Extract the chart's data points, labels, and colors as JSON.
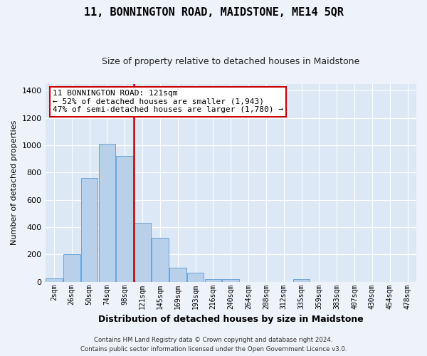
{
  "title": "11, BONNINGTON ROAD, MAIDSTONE, ME14 5QR",
  "subtitle": "Size of property relative to detached houses in Maidstone",
  "xlabel": "Distribution of detached houses by size in Maidstone",
  "ylabel": "Number of detached properties",
  "bar_labels": [
    "2sqm",
    "26sqm",
    "50sqm",
    "74sqm",
    "98sqm",
    "121sqm",
    "145sqm",
    "169sqm",
    "193sqm",
    "216sqm",
    "240sqm",
    "264sqm",
    "288sqm",
    "312sqm",
    "335sqm",
    "359sqm",
    "383sqm",
    "407sqm",
    "430sqm",
    "454sqm",
    "478sqm"
  ],
  "bar_values": [
    25,
    200,
    760,
    1010,
    920,
    430,
    320,
    105,
    65,
    20,
    20,
    0,
    0,
    0,
    20,
    0,
    0,
    0,
    0,
    0,
    0
  ],
  "bar_color": "#b8d0ea",
  "bar_edge_color": "#5b9bd5",
  "red_line_x": 4.5,
  "highlight_color": "#cc0000",
  "ylim": [
    0,
    1450
  ],
  "yticks": [
    0,
    200,
    400,
    600,
    800,
    1000,
    1200,
    1400
  ],
  "annotation_title": "11 BONNINGTON ROAD: 121sqm",
  "annotation_line1": "← 52% of detached houses are smaller (1,943)",
  "annotation_line2": "47% of semi-detached houses are larger (1,780) →",
  "annotation_box_color": "#cc0000",
  "footer_line1": "Contains HM Land Registry data © Crown copyright and database right 2024.",
  "footer_line2": "Contains public sector information licensed under the Open Government Licence v3.0.",
  "background_color": "#eef2fa",
  "plot_bg_color": "#dce8f5",
  "grid_color": "#ffffff",
  "title_fontsize": 11,
  "subtitle_fontsize": 9,
  "ylabel_fontsize": 8,
  "xlabel_fontsize": 9,
  "tick_fontsize": 7,
  "annotation_fontsize": 8
}
